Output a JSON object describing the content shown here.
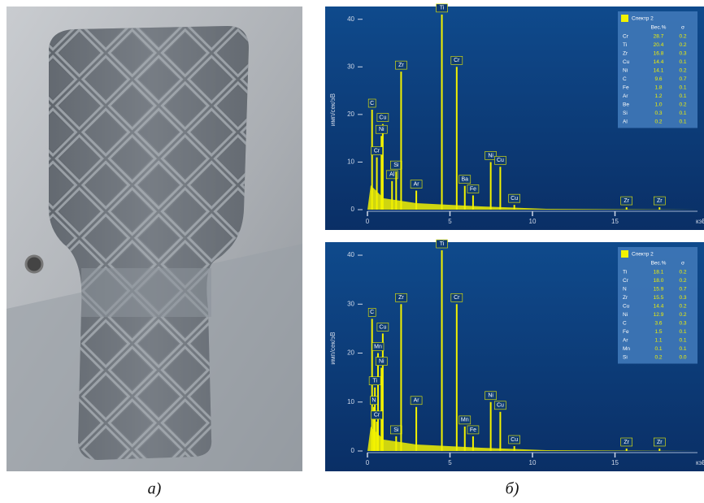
{
  "photo": {
    "caption": "а)"
  },
  "spectra_caption": "б)",
  "spectra": [
    {
      "xlim": [
        0,
        20
      ],
      "ylim": [
        0,
        42
      ],
      "xticks": [
        0,
        5,
        10,
        15
      ],
      "yticks": [
        0,
        10,
        20,
        30,
        40
      ],
      "y_label": "имп/сек/эВ",
      "x_label": "кэВ",
      "color": "#f2f200",
      "legend": {
        "title": "Спектр 2",
        "columns": [
          "Вес.%",
          "σ"
        ],
        "rows": [
          [
            "Cr",
            "28.7",
            "0.2"
          ],
          [
            "Ti",
            "20.4",
            "0.2"
          ],
          [
            "Zr",
            "16.8",
            "0.3"
          ],
          [
            "Cu",
            "14.4",
            "0.1"
          ],
          [
            "Ni",
            "14.1",
            "0.2"
          ],
          [
            "C",
            "9.6",
            "0.7"
          ],
          [
            "Fe",
            "1.8",
            "0.1"
          ],
          [
            "Ar",
            "1.2",
            "0.1"
          ],
          [
            "Be",
            "1.0",
            "0.2"
          ],
          [
            "Si",
            "0.3",
            "0.1"
          ],
          [
            "Al",
            "0.2",
            "0.1"
          ]
        ]
      },
      "peaks": [
        {
          "label": "C",
          "x": 0.28,
          "y": 21
        },
        {
          "label": "Cu",
          "x": 0.93,
          "y": 18
        },
        {
          "label": "Ni",
          "x": 0.85,
          "y": 15.5
        },
        {
          "label": "Cr",
          "x": 0.57,
          "y": 11
        },
        {
          "label": "Al",
          "x": 1.49,
          "y": 6
        },
        {
          "label": "Si",
          "x": 1.74,
          "y": 8
        },
        {
          "label": "Zr",
          "x": 2.04,
          "y": 29
        },
        {
          "label": "Ar",
          "x": 2.96,
          "y": 4
        },
        {
          "label": "Ti",
          "x": 4.51,
          "y": 41
        },
        {
          "label": "Cr",
          "x": 5.41,
          "y": 30
        },
        {
          "label": "Ba",
          "x": 5.9,
          "y": 5
        },
        {
          "label": "Fe",
          "x": 6.4,
          "y": 3
        },
        {
          "label": "Ni",
          "x": 7.47,
          "y": 10
        },
        {
          "label": "Cu",
          "x": 8.05,
          "y": 9
        },
        {
          "label": "Cu",
          "x": 8.9,
          "y": 1
        },
        {
          "label": "Zr",
          "x": 15.7,
          "y": 0.5
        },
        {
          "label": "Zr",
          "x": 17.7,
          "y": 0.5
        }
      ]
    },
    {
      "xlim": [
        0,
        20
      ],
      "ylim": [
        0,
        42
      ],
      "xticks": [
        0,
        5,
        10,
        15
      ],
      "yticks": [
        0,
        10,
        20,
        30,
        40
      ],
      "y_label": "имп/сек/эВ",
      "x_label": "кэВ",
      "color": "#f2f200",
      "legend": {
        "title": "Спектр 2",
        "columns": [
          "Вес.%",
          "σ"
        ],
        "rows": [
          [
            "Ti",
            "18.1",
            "0.2"
          ],
          [
            "Cr",
            "18.0",
            "0.2"
          ],
          [
            "N",
            "15.9",
            "0.7"
          ],
          [
            "Zr",
            "15.5",
            "0.3"
          ],
          [
            "Cu",
            "14.4",
            "0.2"
          ],
          [
            "Ni",
            "12.9",
            "0.2"
          ],
          [
            "C",
            "3.6",
            "0.3"
          ],
          [
            "Fe",
            "1.5",
            "0.1"
          ],
          [
            "Ar",
            "1.1",
            "0.1"
          ],
          [
            "Mn",
            "0.1",
            "0.1"
          ],
          [
            "Si",
            "0.2",
            "0.0"
          ]
        ]
      },
      "peaks": [
        {
          "label": "C",
          "x": 0.28,
          "y": 27
        },
        {
          "label": "Cu",
          "x": 0.93,
          "y": 24
        },
        {
          "label": "Mn",
          "x": 0.64,
          "y": 20
        },
        {
          "label": "Ni",
          "x": 0.85,
          "y": 17
        },
        {
          "label": "Ti",
          "x": 0.45,
          "y": 13
        },
        {
          "label": "N",
          "x": 0.39,
          "y": 9
        },
        {
          "label": "Cr",
          "x": 0.57,
          "y": 6
        },
        {
          "label": "Si",
          "x": 1.74,
          "y": 3
        },
        {
          "label": "Zr",
          "x": 2.04,
          "y": 30
        },
        {
          "label": "Ar",
          "x": 2.96,
          "y": 9
        },
        {
          "label": "Ti",
          "x": 4.51,
          "y": 41
        },
        {
          "label": "Cr",
          "x": 5.41,
          "y": 30
        },
        {
          "label": "Mn",
          "x": 5.9,
          "y": 5
        },
        {
          "label": "Fe",
          "x": 6.4,
          "y": 3
        },
        {
          "label": "Ni",
          "x": 7.47,
          "y": 10
        },
        {
          "label": "Cu",
          "x": 8.05,
          "y": 8
        },
        {
          "label": "Cu",
          "x": 8.9,
          "y": 1
        },
        {
          "label": "Zr",
          "x": 15.7,
          "y": 0.5
        },
        {
          "label": "Zr",
          "x": 17.7,
          "y": 0.5
        }
      ]
    }
  ]
}
